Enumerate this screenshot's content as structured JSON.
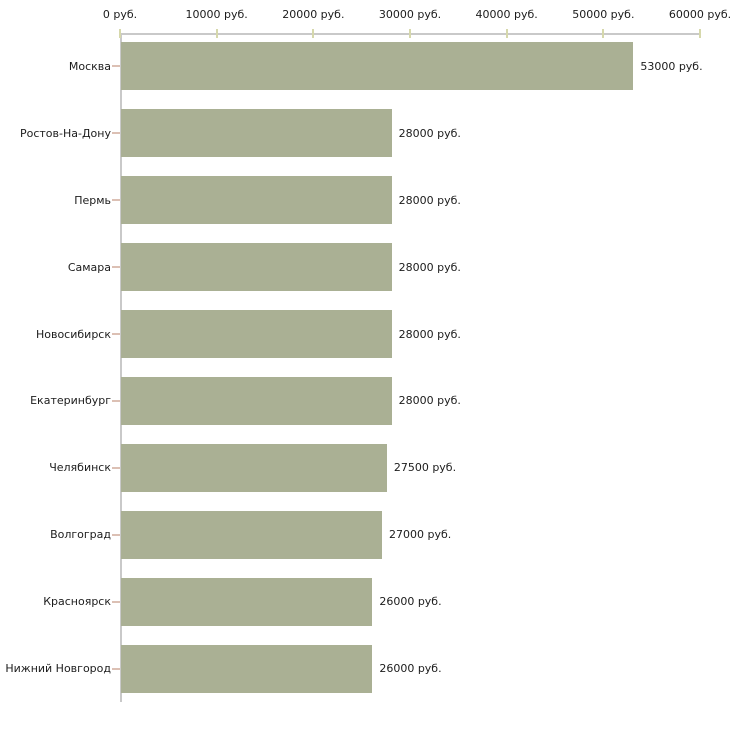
{
  "chart_data": {
    "type": "bar",
    "orientation": "horizontal",
    "title": "",
    "xlabel": "",
    "ylabel": "",
    "xlim": [
      0,
      60000
    ],
    "grid": false,
    "legend": false,
    "categories": [
      "Москва",
      "Ростов-На-Дону",
      "Пермь",
      "Самара",
      "Новосибирск",
      "Екатеринбург",
      "Челябинск",
      "Волгоград",
      "Красноярск",
      "Нижний Новгород"
    ],
    "values": [
      53000,
      28000,
      28000,
      28000,
      28000,
      28000,
      27500,
      27000,
      26000,
      26000
    ],
    "value_labels": [
      "53000 руб.",
      "28000 руб.",
      "28000 руб.",
      "28000 руб.",
      "28000 руб.",
      "28000 руб.",
      "27500 руб.",
      "27000 руб.",
      "26000 руб.",
      "26000 руб."
    ],
    "x_ticks": [
      0,
      10000,
      20000,
      30000,
      40000,
      50000,
      60000
    ],
    "x_tick_labels": [
      "0 руб.",
      "10000 руб.",
      "20000 руб.",
      "30000 руб.",
      "40000 руб.",
      "50000 руб.",
      "60000 руб."
    ],
    "colors": {
      "bar": "#aab094",
      "axis": "#c9c9c9",
      "x_tick": "#d6d8ab",
      "y_tick": "#dcc0b4",
      "text": "#1c1c1c",
      "background": "#ffffff"
    }
  }
}
